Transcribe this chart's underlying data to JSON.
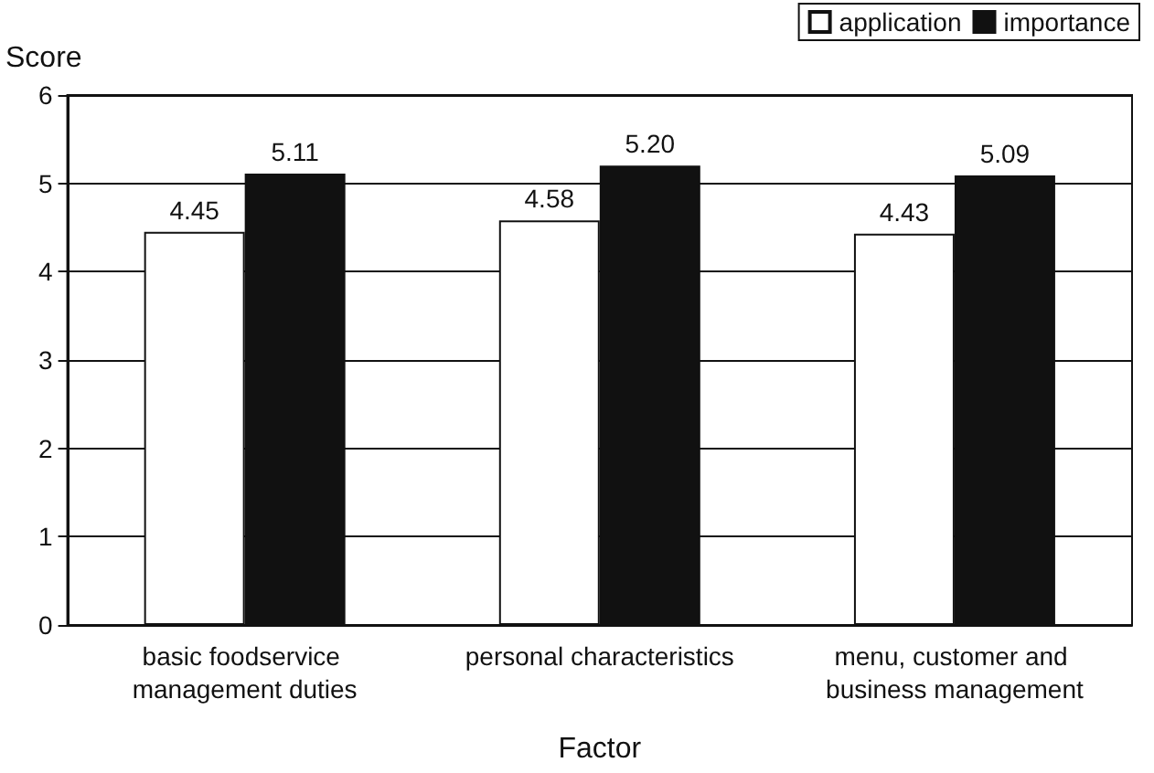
{
  "chart_data": {
    "type": "bar",
    "ylabel": "Score",
    "xlabel": "Factor",
    "categories": [
      "basic foodservice management duties",
      "personal characteristics",
      "menu, customer and business management"
    ],
    "series": [
      {
        "name": "application",
        "color": "#ffffff",
        "values": [
          4.45,
          4.58,
          4.43
        ],
        "value_labels": [
          "4.45",
          "4.58",
          "4.43"
        ]
      },
      {
        "name": "importance",
        "color": "#111111",
        "values": [
          5.11,
          5.2,
          5.09
        ],
        "value_labels": [
          "5.11",
          "5.20",
          "5.09"
        ]
      }
    ],
    "ylim": [
      0,
      6
    ],
    "yticks": [
      0,
      1,
      2,
      3,
      4,
      5,
      6
    ],
    "grid": "y",
    "legend": "top right"
  }
}
